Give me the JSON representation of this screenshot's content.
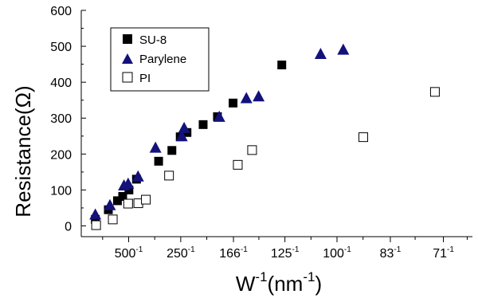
{
  "chart_data": {
    "type": "scatter",
    "xlabel": "W",
    "xlabel_sup": "-1",
    "xlabel_unit": "(nm",
    "xlabel_unit_sup": "-1",
    "xlabel_close": ")",
    "ylabel": "Resistance(Ω)",
    "xlim": [
      0.00018,
      0.0152
    ],
    "ylim": [
      -30,
      600
    ],
    "x_scale": "linear (reciprocal width, 1/nm)",
    "y_ticks": [
      0,
      100,
      200,
      300,
      400,
      500,
      600
    ],
    "x_ticks": [
      {
        "value": 0.002,
        "base": "500",
        "sup": "-1"
      },
      {
        "value": 0.004,
        "base": "250",
        "sup": "-1"
      },
      {
        "value": 0.006024,
        "base": "166",
        "sup": "-1"
      },
      {
        "value": 0.008,
        "base": "125",
        "sup": "-1"
      },
      {
        "value": 0.01,
        "base": "100",
        "sup": "-1"
      },
      {
        "value": 0.012048,
        "base": "83",
        "sup": "-1"
      },
      {
        "value": 0.014085,
        "base": "71",
        "sup": "-1"
      }
    ],
    "x_minor_ticks": [
      0.001,
      0.003,
      0.005,
      0.007,
      0.009,
      0.011,
      0.013,
      0.015
    ],
    "legend": {
      "placement": "top-left",
      "entries": [
        "SU-8",
        "Parylene",
        "PI"
      ]
    },
    "series": [
      {
        "name": "SU-8",
        "marker": "filled-square",
        "color": "#000000",
        "points": [
          [
            0.00072,
            18
          ],
          [
            0.00122,
            45
          ],
          [
            0.00157,
            70
          ],
          [
            0.00177,
            82
          ],
          [
            0.00201,
            100
          ],
          [
            0.0023,
            130
          ],
          [
            0.00315,
            180
          ],
          [
            0.00366,
            210
          ],
          [
            0.00398,
            248
          ],
          [
            0.00424,
            260
          ],
          [
            0.00486,
            282
          ],
          [
            0.00541,
            304
          ],
          [
            0.00601,
            342
          ],
          [
            0.00788,
            448
          ]
        ]
      },
      {
        "name": "Parylene",
        "marker": "filled-triangle",
        "color": "#13127a",
        "points": [
          [
            0.00072,
            31
          ],
          [
            0.00128,
            57
          ],
          [
            0.00182,
            112
          ],
          [
            0.00198,
            117
          ],
          [
            0.00236,
            137
          ],
          [
            0.00303,
            217
          ],
          [
            0.00404,
            249
          ],
          [
            0.00413,
            272
          ],
          [
            0.00548,
            303
          ],
          [
            0.00652,
            355
          ],
          [
            0.00699,
            360
          ],
          [
            0.00937,
            478
          ],
          [
            0.01024,
            490
          ]
        ]
      },
      {
        "name": "PI",
        "marker": "open-square",
        "color": "#000000",
        "points": [
          [
            0.00075,
            2
          ],
          [
            0.00139,
            18
          ],
          [
            0.00198,
            62
          ],
          [
            0.00237,
            63
          ],
          [
            0.00266,
            73
          ],
          [
            0.00355,
            140
          ],
          [
            0.00619,
            170
          ],
          [
            0.00674,
            211
          ],
          [
            0.01101,
            247
          ],
          [
            0.01376,
            373
          ]
        ]
      }
    ]
  }
}
